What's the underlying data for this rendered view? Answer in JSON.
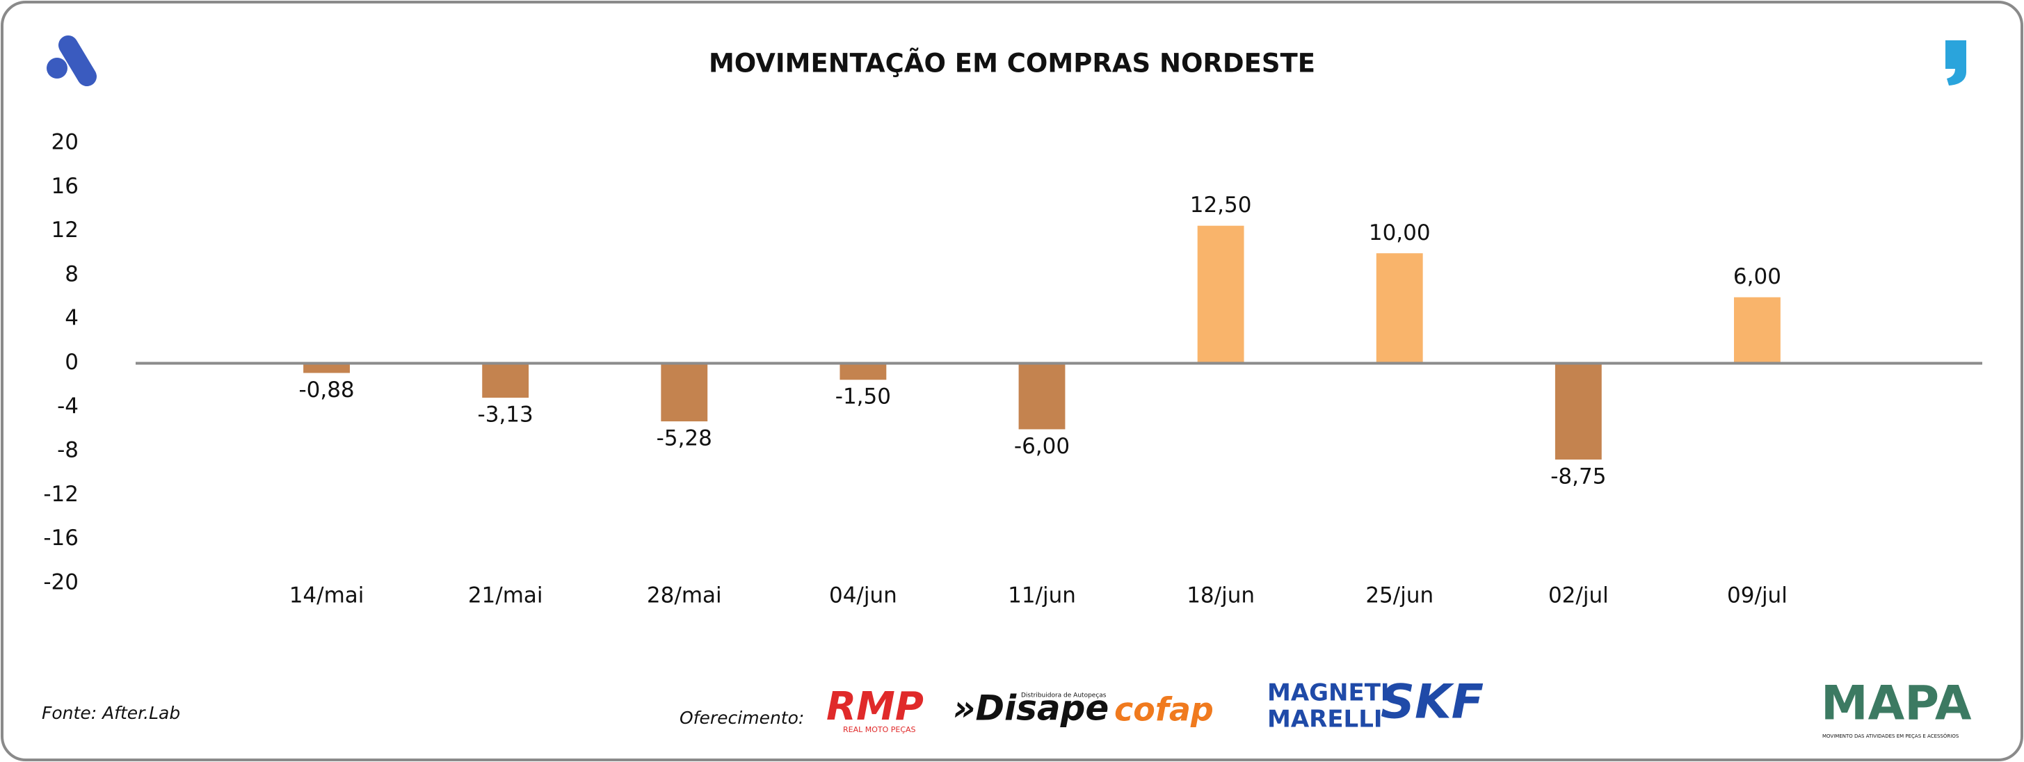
{
  "chart_data": {
    "type": "bar",
    "title": "MOVIMENTAÇÃO EM COMPRAS NORDESTE",
    "categories": [
      "14/mai",
      "21/mai",
      "28/mai",
      "04/jun",
      "11/jun",
      "18/jun",
      "25/jun",
      "02/jul",
      "09/jul"
    ],
    "values": [
      -0.88,
      -3.13,
      -5.28,
      -1.5,
      -6.0,
      12.5,
      10.0,
      -8.75,
      6.0
    ],
    "value_labels": [
      "-0,88",
      "-3,13",
      "-5,28",
      "-1,50",
      "-6,00",
      "12,50",
      "10,00",
      "-8,75",
      "6,00"
    ],
    "color_positive": "#f9b46b",
    "color_negative": "#c4834f",
    "ylim": [
      -20,
      20
    ],
    "yticks": [
      20,
      16,
      12,
      8,
      4,
      0,
      -4,
      -8,
      -12,
      -16,
      -20
    ],
    "grid": false
  },
  "footer": {
    "source": "Fonte: After.Lab",
    "sponsor_label": "Oferecimento:",
    "sponsors": [
      "RMP",
      "REAL MOTO PEÇAS",
      "»Disape",
      "Distribuidora de Autopeças",
      "cofap",
      "MAGNETI",
      "MARELLI",
      "SKF",
      "MAPA",
      "MOVIMENTO DAS ATIVIDADES EM PEÇAS E ACESSÓRIOS"
    ]
  }
}
